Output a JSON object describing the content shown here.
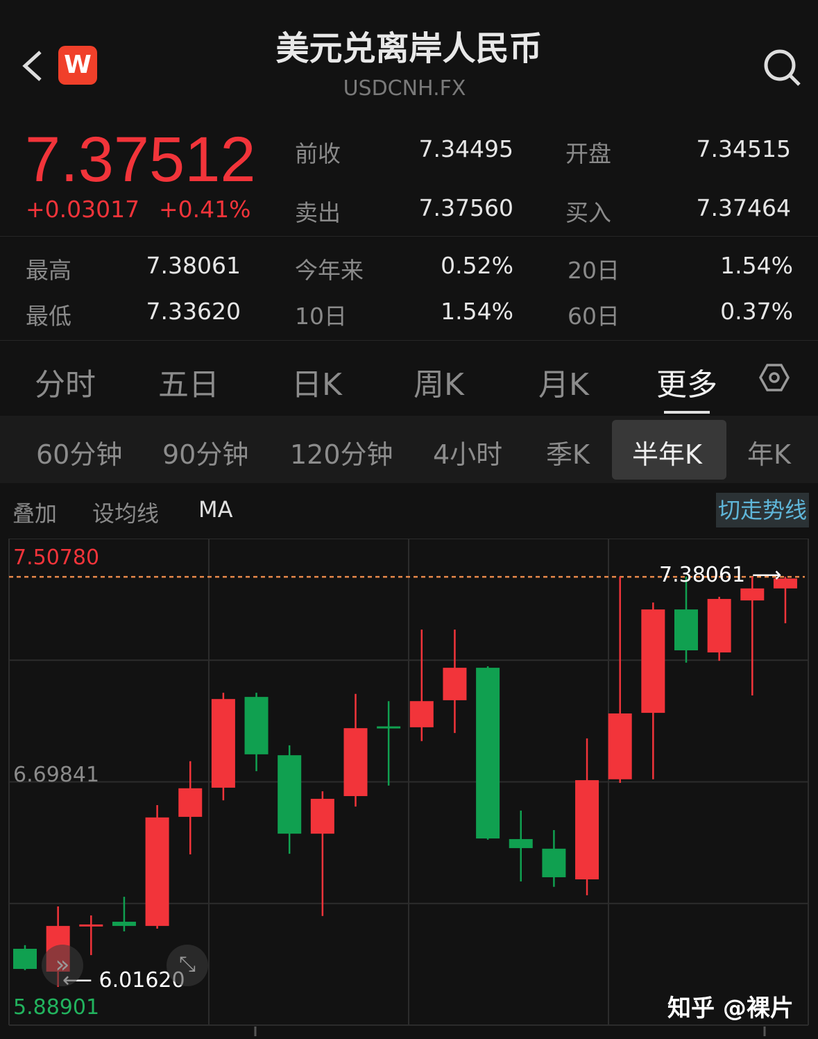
{
  "header": {
    "title": "美元兑离岸人民币",
    "code": "USDCNH.FX",
    "logo": "W",
    "back_icon": "chevron-left-icon",
    "search_icon": "search-icon"
  },
  "quote": {
    "price": "7.37512",
    "change": "+0.03017",
    "change_pct": "+0.41%",
    "color_up": "#f2343a",
    "color_down": "#10a050",
    "fields": [
      {
        "label": "前收",
        "value": "7.34495"
      },
      {
        "label": "开盘",
        "value": "7.34515"
      },
      {
        "label": "卖出",
        "value": "7.37560"
      },
      {
        "label": "买入",
        "value": "7.37464"
      }
    ]
  },
  "stats": [
    {
      "label": "最高",
      "value": "7.38061"
    },
    {
      "label": "今年来",
      "value": "0.52%"
    },
    {
      "label": "20日",
      "value": "1.54%"
    },
    {
      "label": "最低",
      "value": "7.33620"
    },
    {
      "label": "10日",
      "value": "1.54%"
    },
    {
      "label": "60日",
      "value": "0.37%"
    }
  ],
  "tabs": [
    {
      "label": "分时"
    },
    {
      "label": "五日"
    },
    {
      "label": "日K"
    },
    {
      "label": "周K"
    },
    {
      "label": "月K"
    },
    {
      "label": "更多",
      "active": true
    }
  ],
  "subtabs": [
    {
      "label": "60分钟"
    },
    {
      "label": "90分钟"
    },
    {
      "label": "120分钟"
    },
    {
      "label": "4小时"
    },
    {
      "label": "季K"
    },
    {
      "label": "半年K",
      "active": true
    },
    {
      "label": "年K"
    }
  ],
  "tools": {
    "overlay": "叠加",
    "set_ma": "设均线",
    "ma": "MA",
    "switch_trend": "切走势线"
  },
  "watermark": "知乎 @裸片",
  "chart_data": {
    "type": "candlestick",
    "ylim": [
      5.88901,
      7.5078
    ],
    "y_labels": {
      "max": "7.50780",
      "mid": "6.69841",
      "min": "5.88901"
    },
    "high_marker": "7.38061",
    "low_marker": "6.01620",
    "grid": true,
    "candles": [
      {
        "o": 6.143,
        "c": 6.076,
        "h": 6.155,
        "l": 6.072
      },
      {
        "o": 6.067,
        "c": 6.219,
        "h": 6.284,
        "l": 6.0162
      },
      {
        "o": 6.222,
        "c": 6.224,
        "h": 6.254,
        "l": 6.122
      },
      {
        "o": 6.233,
        "c": 6.219,
        "h": 6.316,
        "l": 6.201
      },
      {
        "o": 6.219,
        "c": 6.58,
        "h": 6.621,
        "l": 6.21
      },
      {
        "o": 6.582,
        "c": 6.677,
        "h": 6.767,
        "l": 6.457
      },
      {
        "o": 6.679,
        "c": 6.974,
        "h": 6.995,
        "l": 6.637
      },
      {
        "o": 6.981,
        "c": 6.79,
        "h": 6.995,
        "l": 6.734
      },
      {
        "o": 6.787,
        "c": 6.526,
        "h": 6.82,
        "l": 6.459
      },
      {
        "o": 6.526,
        "c": 6.642,
        "h": 6.667,
        "l": 6.252
      },
      {
        "o": 6.651,
        "c": 6.877,
        "h": 6.991,
        "l": 6.616
      },
      {
        "o": 6.883,
        "c": 6.88,
        "h": 6.967,
        "l": 6.686
      },
      {
        "o": 6.88,
        "c": 6.967,
        "h": 7.205,
        "l": 6.834
      },
      {
        "o": 6.97,
        "c": 7.078,
        "h": 7.205,
        "l": 6.861
      },
      {
        "o": 7.078,
        "c": 6.51,
        "h": 7.083,
        "l": 6.506
      },
      {
        "o": 6.508,
        "c": 6.478,
        "h": 6.603,
        "l": 6.367
      },
      {
        "o": 6.476,
        "c": 6.381,
        "h": 6.538,
        "l": 6.349
      },
      {
        "o": 6.374,
        "c": 6.704,
        "h": 6.843,
        "l": 6.321
      },
      {
        "o": 6.707,
        "c": 6.926,
        "h": 7.381,
        "l": 6.695
      },
      {
        "o": 6.928,
        "c": 7.272,
        "h": 7.295,
        "l": 6.707
      },
      {
        "o": 7.272,
        "c": 7.136,
        "h": 7.381,
        "l": 7.095
      },
      {
        "o": 7.129,
        "c": 7.307,
        "h": 7.314,
        "l": 7.101
      },
      {
        "o": 7.302,
        "c": 7.342,
        "h": 7.381,
        "l": 6.986
      },
      {
        "o": 7.342,
        "c": 7.375,
        "h": 7.381,
        "l": 7.226
      }
    ]
  }
}
